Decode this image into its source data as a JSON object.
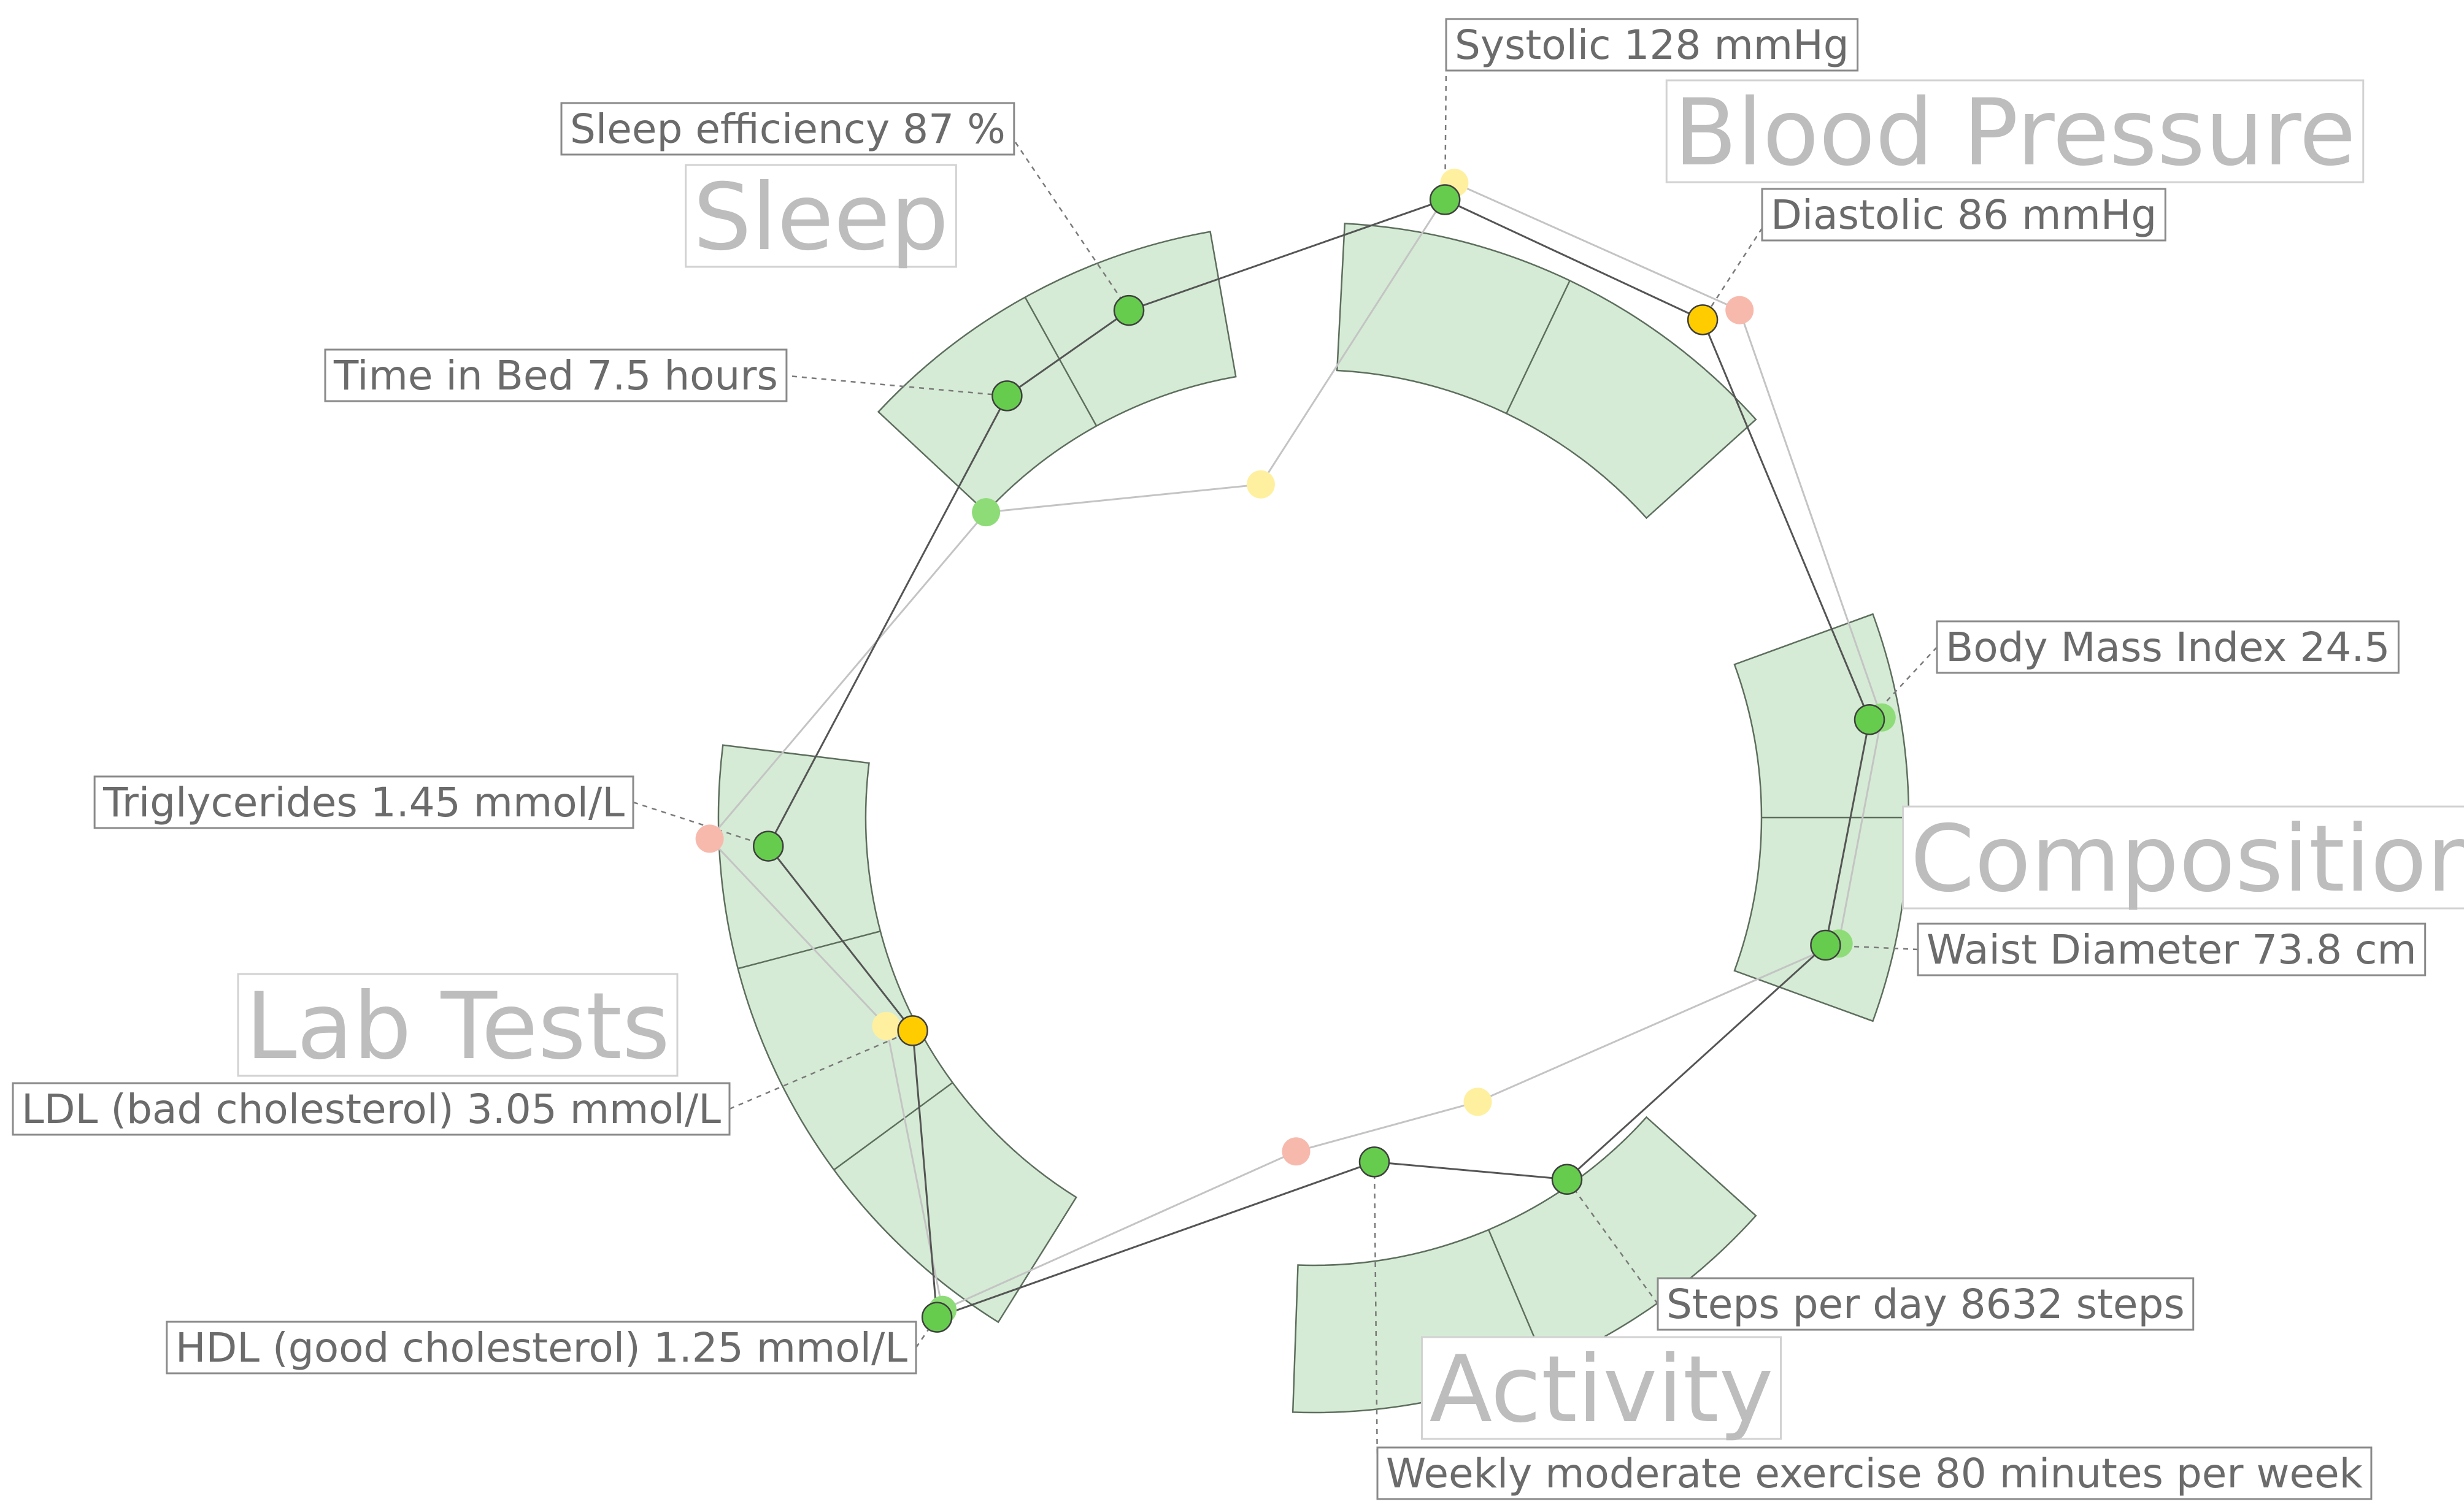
{
  "chart_data": {
    "type": "radial",
    "groups": [
      {
        "name": "Sleep",
        "metrics": [
          {
            "label": "Time in Bed",
            "value": 7.5,
            "unit": "hours",
            "status": "good",
            "previous_status": "good"
          },
          {
            "label": "Sleep efficiency",
            "value": 87,
            "unit": "%",
            "status": "good",
            "previous_status": "fair"
          }
        ]
      },
      {
        "name": "Blood Pressure",
        "metrics": [
          {
            "label": "Systolic",
            "value": 128,
            "unit": "mmHg",
            "status": "good",
            "previous_status": "fair"
          },
          {
            "label": "Diastolic",
            "value": 86,
            "unit": "mmHg",
            "status": "borderline",
            "previous_status": "poor"
          }
        ]
      },
      {
        "name": "Composition",
        "metrics": [
          {
            "label": "Body Mass Index",
            "value": 24.5,
            "unit": "",
            "status": "good",
            "previous_status": "good"
          },
          {
            "label": "Waist Diameter",
            "value": 73.8,
            "unit": "cm",
            "status": "good",
            "previous_status": "good"
          }
        ]
      },
      {
        "name": "Activity",
        "metrics": [
          {
            "label": "Steps per day",
            "value": 8632,
            "unit": "steps",
            "status": "good",
            "previous_status": "fair"
          },
          {
            "label": "Weekly moderate exercise",
            "value": 80,
            "unit": "minutes per week",
            "status": "good",
            "previous_status": "poor"
          }
        ]
      },
      {
        "name": "Lab Tests",
        "metrics": [
          {
            "label": "HDL (good cholesterol)",
            "value": 1.25,
            "unit": "mmol/L",
            "status": "good",
            "previous_status": "good"
          },
          {
            "label": "LDL (bad cholesterol)",
            "value": 3.05,
            "unit": "mmol/L",
            "status": "borderline",
            "previous_status": "fair"
          },
          {
            "label": "Triglycerides",
            "value": 1.45,
            "unit": "mmol/L",
            "status": "good",
            "previous_status": "poor"
          }
        ]
      }
    ],
    "status_colors": {
      "good": "#66cc4d",
      "borderline": "#ffcc00",
      "fair": "#fff0a0",
      "poor": "#f8b9ad",
      "good_previous": "#8edc78"
    },
    "band_color": "#d5ebd5",
    "current_line_color": "#555555",
    "previous_line_color": "#c4c4c4"
  }
}
